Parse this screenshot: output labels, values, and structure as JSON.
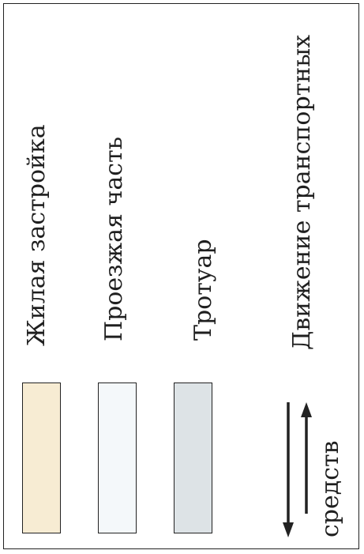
{
  "legend": {
    "items": [
      {
        "label": "Жилая застройка",
        "color": "#f7ecd3"
      },
      {
        "label": "Проезжая часть",
        "color": "#f4f8fa"
      },
      {
        "label": "Тротуар",
        "color": "#dde3e6"
      }
    ],
    "traffic": {
      "label_line1": "Движение транспортных",
      "label_line2": "средств",
      "arrow_icons": [
        "arrow-down-icon",
        "arrow-up-icon"
      ]
    }
  }
}
